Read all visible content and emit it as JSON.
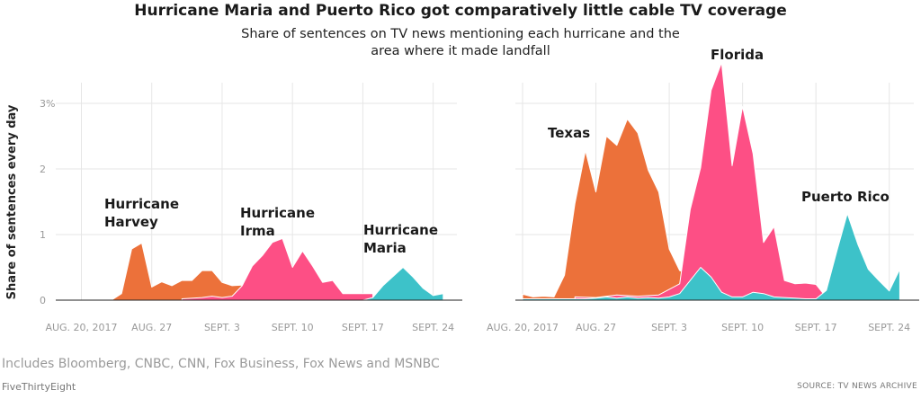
{
  "header": {
    "title": "Hurricane Maria and Puerto Rico got comparatively little cable TV coverage",
    "subtitle": "Share of sentences on TV news mentioning each hurricane and the area where it made landfall"
  },
  "footer": {
    "note": "Includes Bloomberg, CNBC, CNN, Fox Business, Fox News and MSNBC",
    "brand": "FiveThirtyEight",
    "source": "SOURCE: TV NEWS ARCHIVE"
  },
  "colors": {
    "harvey": "#ec713a",
    "irma": "#fd4f85",
    "maria": "#3dc2c9",
    "grid": "#e6e6e6",
    "baseline": "#222222"
  },
  "chart_data": [
    {
      "type": "area",
      "ylabel": "Share of sentences every day",
      "yticks": [
        "0",
        "1",
        "2",
        "3%"
      ],
      "ylim": [
        0,
        3.2
      ],
      "xlim": [
        "2017-08-20",
        "2017-09-26"
      ],
      "xticks": [
        {
          "date": "2017-08-20",
          "label": "AUG. 20, 2017"
        },
        {
          "date": "2017-08-27",
          "label": "AUG. 27"
        },
        {
          "date": "2017-09-03",
          "label": "SEPT. 3"
        },
        {
          "date": "2017-09-10",
          "label": "SEPT. 10"
        },
        {
          "date": "2017-09-17",
          "label": "SEPT. 17"
        },
        {
          "date": "2017-09-24",
          "label": "SEPT. 24"
        }
      ],
      "series": [
        {
          "name": "Hurricane Harvey",
          "key": "harvey",
          "x": [
            "2017-08-20",
            "2017-08-21",
            "2017-08-22",
            "2017-08-23",
            "2017-08-24",
            "2017-08-25",
            "2017-08-26",
            "2017-08-27",
            "2017-08-28",
            "2017-08-29",
            "2017-08-30",
            "2017-08-31",
            "2017-09-01",
            "2017-09-02",
            "2017-09-03",
            "2017-09-04",
            "2017-09-05",
            "2017-09-06"
          ],
          "values": [
            0,
            0,
            0,
            0,
            0.1,
            0.78,
            0.87,
            0.2,
            0.28,
            0.22,
            0.3,
            0.3,
            0.45,
            0.45,
            0.27,
            0.22,
            0.23,
            0
          ]
        },
        {
          "name": "Hurricane Irma",
          "key": "irma",
          "x": [
            "2017-08-30",
            "2017-09-01",
            "2017-09-02",
            "2017-09-03",
            "2017-09-04",
            "2017-09-05",
            "2017-09-06",
            "2017-09-07",
            "2017-09-08",
            "2017-09-09",
            "2017-09-10",
            "2017-09-11",
            "2017-09-12",
            "2017-09-13",
            "2017-09-14",
            "2017-09-15",
            "2017-09-16",
            "2017-09-17",
            "2017-09-18"
          ],
          "values": [
            0.02,
            0.04,
            0.06,
            0.04,
            0.06,
            0.22,
            0.52,
            0.68,
            0.88,
            0.94,
            0.5,
            0.75,
            0.52,
            0.27,
            0.3,
            0.1,
            0.1,
            0.1,
            0.1
          ]
        },
        {
          "name": "Hurricane Maria",
          "key": "maria",
          "x": [
            "2017-09-17",
            "2017-09-18",
            "2017-09-19",
            "2017-09-20",
            "2017-09-21",
            "2017-09-22",
            "2017-09-23",
            "2017-09-24",
            "2017-09-25"
          ],
          "values": [
            0,
            0.04,
            0.22,
            0.36,
            0.5,
            0.35,
            0.18,
            0.07,
            0.1
          ]
        }
      ],
      "annotations": [
        {
          "key": "harvey",
          "lines": [
            "Hurricane",
            "Harvey"
          ]
        },
        {
          "key": "irma",
          "lines": [
            "Hurricane",
            "Irma"
          ]
        },
        {
          "key": "maria",
          "lines": [
            "Hurricane",
            "Maria"
          ]
        }
      ]
    },
    {
      "type": "area",
      "ylim": [
        0,
        3.2
      ],
      "xlim": [
        "2017-08-20",
        "2017-09-26"
      ],
      "xticks": [
        {
          "date": "2017-08-20",
          "label": "AUG. 20, 2017"
        },
        {
          "date": "2017-08-27",
          "label": "AUG. 27"
        },
        {
          "date": "2017-09-03",
          "label": "SEPT. 3"
        },
        {
          "date": "2017-09-10",
          "label": "SEPT. 10"
        },
        {
          "date": "2017-09-17",
          "label": "SEPT. 17"
        },
        {
          "date": "2017-09-24",
          "label": "SEPT. 24"
        }
      ],
      "series": [
        {
          "name": "Texas",
          "key": "harvey",
          "x": [
            "2017-08-20",
            "2017-08-21",
            "2017-08-22",
            "2017-08-23",
            "2017-08-24",
            "2017-08-25",
            "2017-08-26",
            "2017-08-27",
            "2017-08-28",
            "2017-08-29",
            "2017-08-30",
            "2017-08-31",
            "2017-09-01",
            "2017-09-02",
            "2017-09-03",
            "2017-09-04",
            "2017-09-05"
          ],
          "values": [
            0.09,
            0.05,
            0.06,
            0.05,
            0.38,
            1.47,
            2.28,
            1.65,
            2.5,
            2.36,
            2.76,
            2.55,
            1.98,
            1.65,
            0.78,
            0.45,
            0.38
          ]
        },
        {
          "name": "Florida",
          "key": "irma",
          "x": [
            "2017-08-25",
            "2017-08-27",
            "2017-08-29",
            "2017-08-31",
            "2017-09-02",
            "2017-09-04",
            "2017-09-05",
            "2017-09-06",
            "2017-09-07",
            "2017-09-08",
            "2017-09-09",
            "2017-09-10",
            "2017-09-11",
            "2017-09-12",
            "2017-09-13",
            "2017-09-14",
            "2017-09-15",
            "2017-09-16",
            "2017-09-17",
            "2017-09-18"
          ],
          "values": [
            0.05,
            0.04,
            0.08,
            0.06,
            0.08,
            0.25,
            1.38,
            2.02,
            3.2,
            3.62,
            2.05,
            2.95,
            2.23,
            0.88,
            1.12,
            0.3,
            0.25,
            0.26,
            0.24,
            0.04
          ]
        },
        {
          "name": "Puerto Rico",
          "key": "maria",
          "x": [
            "2017-08-20",
            "2017-08-21",
            "2017-08-22",
            "2017-08-23",
            "2017-08-24",
            "2017-08-25",
            "2017-08-26",
            "2017-08-27",
            "2017-08-28",
            "2017-08-29",
            "2017-08-30",
            "2017-08-31",
            "2017-09-01",
            "2017-09-02",
            "2017-09-03",
            "2017-09-04",
            "2017-09-05",
            "2017-09-06",
            "2017-09-07",
            "2017-09-08",
            "2017-09-09",
            "2017-09-10",
            "2017-09-11",
            "2017-09-12",
            "2017-09-13",
            "2017-09-14",
            "2017-09-15",
            "2017-09-16",
            "2017-09-17",
            "2017-09-18",
            "2017-09-19",
            "2017-09-20",
            "2017-09-21",
            "2017-09-22",
            "2017-09-23",
            "2017-09-24",
            "2017-09-25"
          ],
          "values": [
            0.02,
            0.02,
            0.02,
            0.02,
            0.02,
            0.02,
            0.02,
            0.03,
            0.05,
            0.03,
            0.05,
            0.03,
            0.04,
            0.03,
            0.05,
            0.1,
            0.3,
            0.5,
            0.35,
            0.12,
            0.05,
            0.05,
            0.12,
            0.1,
            0.05,
            0.04,
            0.03,
            0.02,
            0.02,
            0.15,
            0.75,
            1.32,
            0.85,
            0.47,
            0.3,
            0.14,
            0.47
          ]
        }
      ],
      "annotations": [
        {
          "key": "harvey",
          "lines": [
            "Texas"
          ]
        },
        {
          "key": "irma",
          "lines": [
            "Florida"
          ]
        },
        {
          "key": "maria",
          "lines": [
            "Puerto Rico"
          ]
        }
      ]
    }
  ]
}
